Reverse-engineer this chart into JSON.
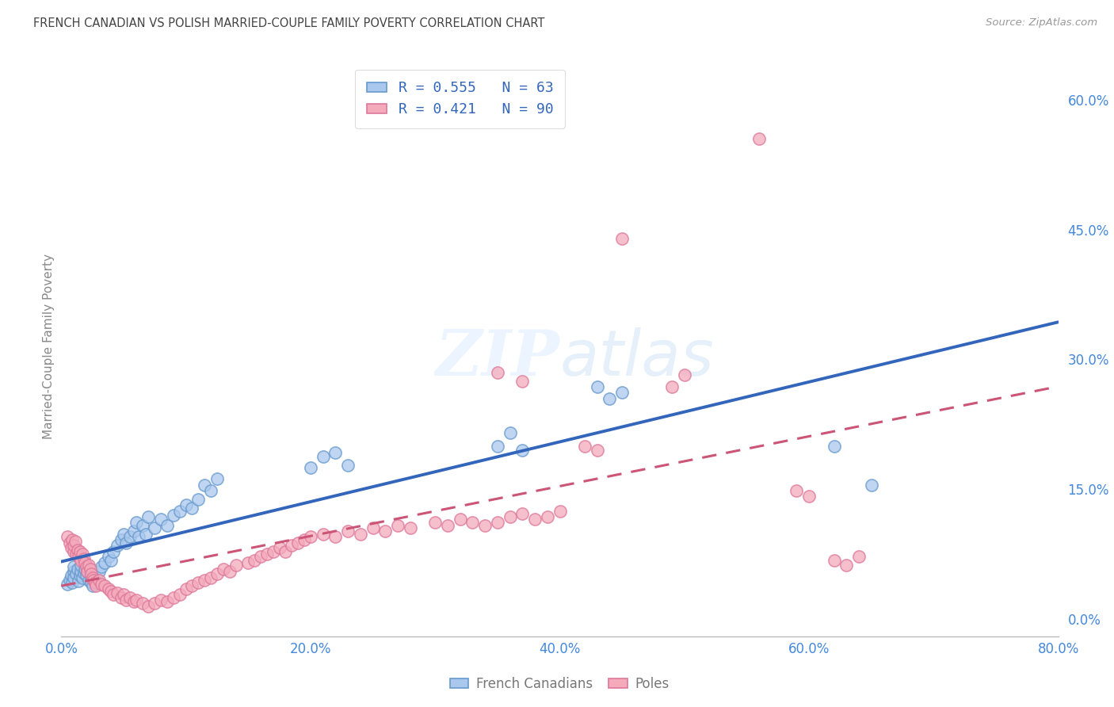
{
  "title": "FRENCH CANADIAN VS POLISH MARRIED-COUPLE FAMILY POVERTY CORRELATION CHART",
  "source": "Source: ZipAtlas.com",
  "ylabel": "Married-Couple Family Poverty",
  "xlim": [
    0.0,
    0.8
  ],
  "ylim": [
    -0.02,
    0.65
  ],
  "xticks": [
    0.0,
    0.2,
    0.4,
    0.6,
    0.8
  ],
  "xticklabels": [
    "0.0%",
    "20.0%",
    "40.0%",
    "60.0%",
    "80.0%"
  ],
  "yticks_right": [
    0.0,
    0.15,
    0.3,
    0.45,
    0.6
  ],
  "yticklabels_right": [
    "0.0%",
    "15.0%",
    "30.0%",
    "45.0%",
    "60.0%"
  ],
  "watermark": "ZIPatlas",
  "legend_labels_bottom": [
    "French Canadians",
    "Poles"
  ],
  "french_canadian_fill": "#aac8ed",
  "french_canadian_edge": "#6699cc",
  "poles_fill": "#f4aabb",
  "poles_edge": "#dd7799",
  "french_canadian_line_color": "#3366bb",
  "poles_line_color": "#cc5577",
  "background_color": "#ffffff",
  "grid_color": "#c8c8c8",
  "title_color": "#444444",
  "axis_label_color": "#888888",
  "right_tick_color": "#4488dd",
  "bottom_tick_color": "#4488dd",
  "legend_text_color": "#3366bb",
  "legend_N_color": "#228833",
  "fc_points": [
    [
      0.005,
      0.04
    ],
    [
      0.007,
      0.045
    ],
    [
      0.008,
      0.05
    ],
    [
      0.009,
      0.042
    ],
    [
      0.01,
      0.055
    ],
    [
      0.01,
      0.06
    ],
    [
      0.01,
      0.048
    ],
    [
      0.012,
      0.052
    ],
    [
      0.013,
      0.058
    ],
    [
      0.014,
      0.044
    ],
    [
      0.015,
      0.05
    ],
    [
      0.016,
      0.055
    ],
    [
      0.016,
      0.062
    ],
    [
      0.017,
      0.048
    ],
    [
      0.018,
      0.053
    ],
    [
      0.019,
      0.058
    ],
    [
      0.02,
      0.062
    ],
    [
      0.02,
      0.05
    ],
    [
      0.021,
      0.055
    ],
    [
      0.022,
      0.045
    ],
    [
      0.023,
      0.05
    ],
    [
      0.024,
      0.042
    ],
    [
      0.025,
      0.038
    ],
    [
      0.026,
      0.048
    ],
    [
      0.03,
      0.055
    ],
    [
      0.032,
      0.06
    ],
    [
      0.035,
      0.065
    ],
    [
      0.038,
      0.072
    ],
    [
      0.04,
      0.068
    ],
    [
      0.042,
      0.078
    ],
    [
      0.045,
      0.085
    ],
    [
      0.048,
      0.092
    ],
    [
      0.05,
      0.098
    ],
    [
      0.052,
      0.088
    ],
    [
      0.055,
      0.095
    ],
    [
      0.058,
      0.102
    ],
    [
      0.06,
      0.112
    ],
    [
      0.062,
      0.095
    ],
    [
      0.065,
      0.108
    ],
    [
      0.068,
      0.098
    ],
    [
      0.07,
      0.118
    ],
    [
      0.075,
      0.105
    ],
    [
      0.08,
      0.115
    ],
    [
      0.085,
      0.108
    ],
    [
      0.09,
      0.12
    ],
    [
      0.095,
      0.125
    ],
    [
      0.1,
      0.132
    ],
    [
      0.105,
      0.128
    ],
    [
      0.11,
      0.138
    ],
    [
      0.115,
      0.155
    ],
    [
      0.12,
      0.148
    ],
    [
      0.125,
      0.162
    ],
    [
      0.2,
      0.175
    ],
    [
      0.21,
      0.188
    ],
    [
      0.22,
      0.192
    ],
    [
      0.23,
      0.178
    ],
    [
      0.35,
      0.2
    ],
    [
      0.36,
      0.215
    ],
    [
      0.37,
      0.195
    ],
    [
      0.43,
      0.268
    ],
    [
      0.44,
      0.255
    ],
    [
      0.45,
      0.262
    ],
    [
      0.62,
      0.2
    ],
    [
      0.65,
      0.155
    ]
  ],
  "poles_points": [
    [
      0.005,
      0.095
    ],
    [
      0.007,
      0.088
    ],
    [
      0.008,
      0.082
    ],
    [
      0.009,
      0.092
    ],
    [
      0.01,
      0.078
    ],
    [
      0.01,
      0.085
    ],
    [
      0.011,
      0.09
    ],
    [
      0.012,
      0.075
    ],
    [
      0.013,
      0.08
    ],
    [
      0.014,
      0.072
    ],
    [
      0.015,
      0.078
    ],
    [
      0.016,
      0.068
    ],
    [
      0.017,
      0.075
    ],
    [
      0.018,
      0.07
    ],
    [
      0.019,
      0.065
    ],
    [
      0.02,
      0.06
    ],
    [
      0.021,
      0.055
    ],
    [
      0.022,
      0.062
    ],
    [
      0.023,
      0.058
    ],
    [
      0.024,
      0.052
    ],
    [
      0.025,
      0.048
    ],
    [
      0.026,
      0.045
    ],
    [
      0.027,
      0.042
    ],
    [
      0.028,
      0.038
    ],
    [
      0.03,
      0.045
    ],
    [
      0.032,
      0.04
    ],
    [
      0.035,
      0.038
    ],
    [
      0.038,
      0.035
    ],
    [
      0.04,
      0.032
    ],
    [
      0.042,
      0.028
    ],
    [
      0.045,
      0.03
    ],
    [
      0.048,
      0.025
    ],
    [
      0.05,
      0.028
    ],
    [
      0.052,
      0.022
    ],
    [
      0.055,
      0.025
    ],
    [
      0.058,
      0.02
    ],
    [
      0.06,
      0.022
    ],
    [
      0.065,
      0.018
    ],
    [
      0.07,
      0.015
    ],
    [
      0.075,
      0.018
    ],
    [
      0.08,
      0.022
    ],
    [
      0.085,
      0.02
    ],
    [
      0.09,
      0.025
    ],
    [
      0.095,
      0.028
    ],
    [
      0.1,
      0.035
    ],
    [
      0.105,
      0.038
    ],
    [
      0.11,
      0.042
    ],
    [
      0.115,
      0.045
    ],
    [
      0.12,
      0.048
    ],
    [
      0.125,
      0.052
    ],
    [
      0.13,
      0.058
    ],
    [
      0.135,
      0.055
    ],
    [
      0.14,
      0.062
    ],
    [
      0.15,
      0.065
    ],
    [
      0.155,
      0.068
    ],
    [
      0.16,
      0.072
    ],
    [
      0.165,
      0.075
    ],
    [
      0.17,
      0.078
    ],
    [
      0.175,
      0.082
    ],
    [
      0.18,
      0.078
    ],
    [
      0.185,
      0.085
    ],
    [
      0.19,
      0.088
    ],
    [
      0.195,
      0.092
    ],
    [
      0.2,
      0.095
    ],
    [
      0.21,
      0.098
    ],
    [
      0.22,
      0.095
    ],
    [
      0.23,
      0.102
    ],
    [
      0.24,
      0.098
    ],
    [
      0.25,
      0.105
    ],
    [
      0.26,
      0.102
    ],
    [
      0.27,
      0.108
    ],
    [
      0.28,
      0.105
    ],
    [
      0.3,
      0.112
    ],
    [
      0.31,
      0.108
    ],
    [
      0.32,
      0.115
    ],
    [
      0.33,
      0.112
    ],
    [
      0.34,
      0.108
    ],
    [
      0.35,
      0.112
    ],
    [
      0.36,
      0.118
    ],
    [
      0.37,
      0.122
    ],
    [
      0.38,
      0.115
    ],
    [
      0.39,
      0.118
    ],
    [
      0.4,
      0.125
    ],
    [
      0.35,
      0.285
    ],
    [
      0.37,
      0.275
    ],
    [
      0.42,
      0.2
    ],
    [
      0.43,
      0.195
    ],
    [
      0.49,
      0.268
    ],
    [
      0.5,
      0.282
    ],
    [
      0.59,
      0.148
    ],
    [
      0.6,
      0.142
    ],
    [
      0.62,
      0.068
    ],
    [
      0.63,
      0.062
    ],
    [
      0.64,
      0.072
    ],
    [
      0.45,
      0.44
    ],
    [
      0.56,
      0.555
    ]
  ]
}
